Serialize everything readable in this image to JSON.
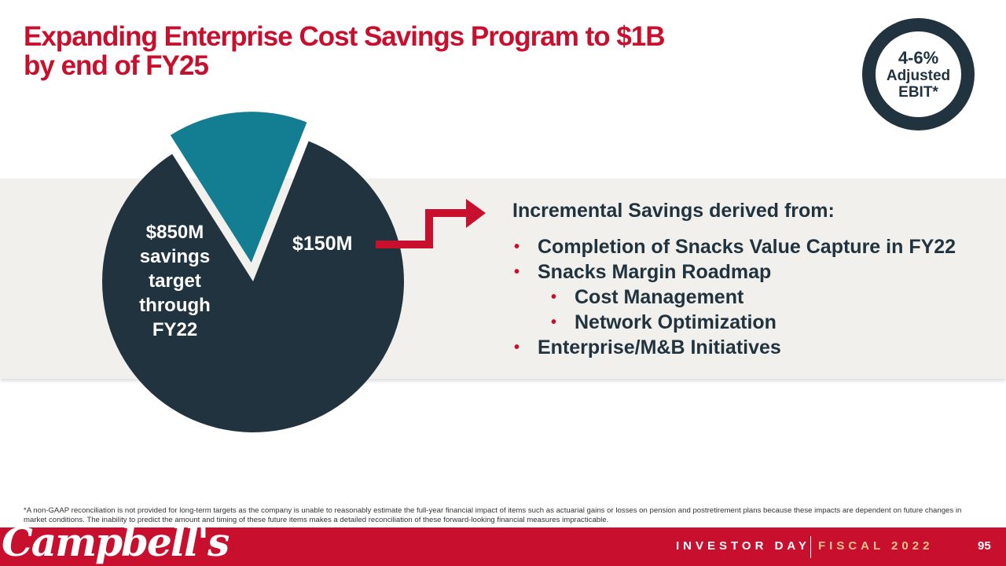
{
  "slide": {
    "title_line1": "Expanding Enterprise Cost Savings Program to $1B",
    "title_line2": "by end of FY25"
  },
  "badge": {
    "percent": "4-6%",
    "line1": "Adjusted",
    "line2": "EBIT*"
  },
  "chart_data": {
    "type": "pie",
    "title": "",
    "slices": [
      {
        "name": "$850M savings target through FY22",
        "value": 850,
        "label_lines": [
          "$850M",
          "savings",
          "target",
          "through",
          "FY22"
        ]
      },
      {
        "name": "$150M",
        "value": 150,
        "label": "$150M",
        "exploded": true
      }
    ],
    "units": "$M",
    "total": 1000
  },
  "savings": {
    "heading": "Incremental Savings derived from:",
    "items": [
      {
        "text": "Completion of Snacks Value Capture in FY22",
        "level": 1
      },
      {
        "text": "Snacks Margin Roadmap",
        "level": 1
      },
      {
        "text": "Cost Management",
        "level": 2
      },
      {
        "text": "Network Optimization",
        "level": 2
      },
      {
        "text": "Enterprise/M&B Initiatives",
        "level": 1
      }
    ]
  },
  "footnote": "*A non-GAAP reconciliation is not provided for long-term targets as the company is unable to reasonably estimate the full-year financial impact of items such as actuarial gains or losses on pension and postretirement plans because these impacts are dependent on future changes in market conditions. The inability to predict the amount and timing of these future items makes a detailed reconciliation of these forward-looking financial measures impracticable.",
  "footer": {
    "logo": "Campbell's",
    "event": "INVESTOR DAY",
    "fiscal": "FISCAL 2022",
    "page": "95"
  },
  "colors": {
    "brand_red": "#c8102e",
    "navy": "#21333f",
    "teal": "#137d92",
    "band": "#f2f0ec",
    "gold": "#e8c48c"
  }
}
